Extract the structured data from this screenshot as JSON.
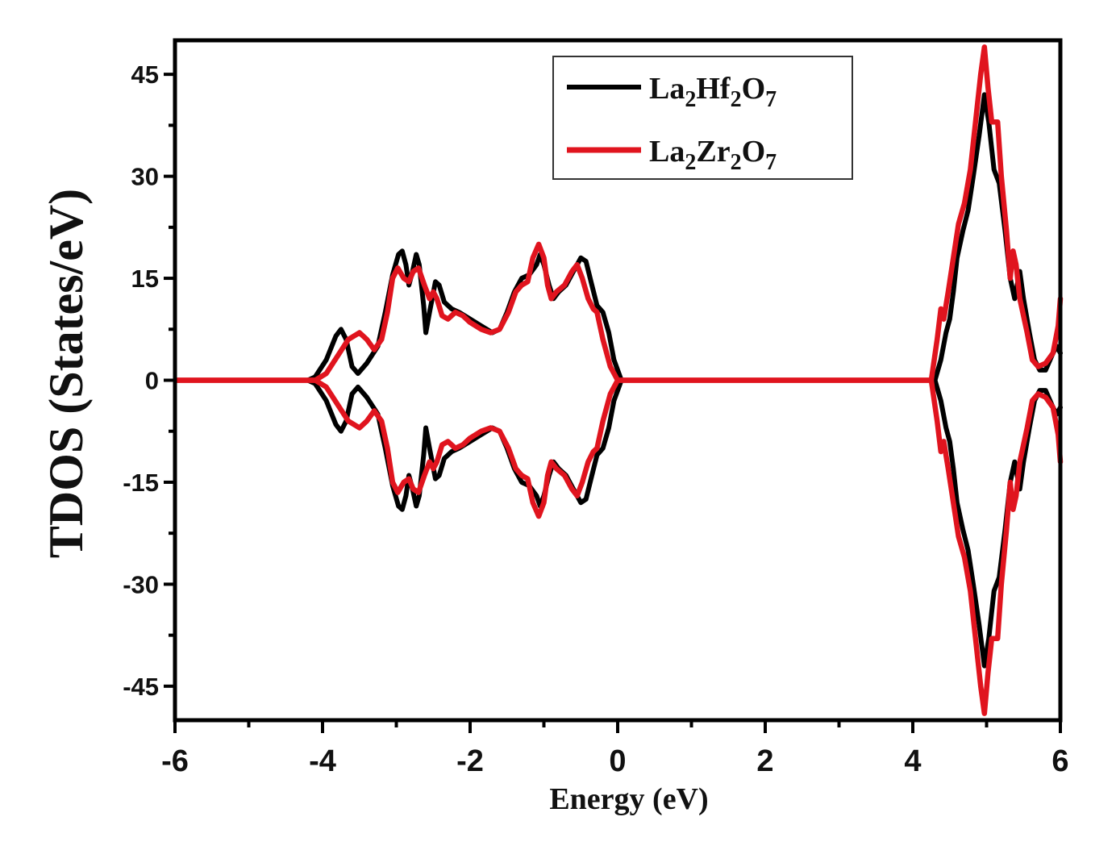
{
  "chart_data": {
    "type": "line",
    "title": "",
    "xlabel": "Energy (eV)",
    "ylabel": "TDOS (States/eV)",
    "xlim": [
      -6,
      6
    ],
    "ylim": [
      -50,
      50
    ],
    "xticks": [
      -6,
      -4,
      -2,
      0,
      2,
      4,
      6
    ],
    "xtick_labels": [
      "-6",
      "-4",
      "-2",
      "0",
      "2",
      "4",
      "6"
    ],
    "yticks": [
      45,
      30,
      15,
      0,
      -15,
      -30,
      -45
    ],
    "ytick_labels": [
      "45",
      "30",
      "15",
      "0",
      "-15",
      "-30",
      "-45"
    ],
    "grid": false,
    "legend_position": "upper right",
    "symmetric_spin_down": true,
    "series": [
      {
        "name": "La2Hf2O7",
        "legend": {
          "base": "La",
          "s1": "2",
          "mid": "Hf",
          "s2": "2",
          "end": "O",
          "s3": "7"
        },
        "color": "#000000",
        "x": [
          -6,
          -4.2,
          -4.1,
          -3.95,
          -3.82,
          -3.75,
          -3.68,
          -3.6,
          -3.52,
          -3.4,
          -3.25,
          -3.15,
          -3.05,
          -2.97,
          -2.92,
          -2.87,
          -2.83,
          -2.78,
          -2.73,
          -2.69,
          -2.63,
          -2.6,
          -2.55,
          -2.47,
          -2.42,
          -2.35,
          -2.25,
          -2.15,
          -2.0,
          -1.85,
          -1.7,
          -1.6,
          -1.5,
          -1.4,
          -1.3,
          -1.2,
          -1.1,
          -1.05,
          -1.0,
          -0.93,
          -0.87,
          -0.8,
          -0.7,
          -0.6,
          -0.5,
          -0.43,
          -0.35,
          -0.28,
          -0.2,
          -0.12,
          -0.05,
          0.05,
          4.3,
          4.38,
          4.45,
          4.5,
          4.55,
          4.6,
          4.68,
          4.75,
          4.82,
          4.9,
          4.97,
          5.03,
          5.1,
          5.17,
          5.25,
          5.32,
          5.38,
          5.45,
          5.5,
          5.58,
          5.65,
          5.72,
          5.8,
          5.9,
          5.95,
          6.0
        ],
        "y": [
          0,
          0,
          0.5,
          3,
          6.5,
          7.5,
          6,
          2,
          1,
          2.5,
          5,
          10,
          15.5,
          18.5,
          19,
          17,
          14,
          16,
          18.5,
          17,
          11,
          7,
          10,
          14.5,
          14,
          11.5,
          10.5,
          10,
          9,
          8,
          7,
          7.5,
          10,
          13,
          15,
          15.5,
          17,
          18.5,
          17,
          14,
          12,
          13,
          14,
          16,
          18,
          17.5,
          14,
          11,
          10,
          7,
          3,
          0,
          0,
          3,
          7,
          9,
          13,
          18,
          22,
          25,
          30,
          36,
          42,
          38,
          31,
          29,
          22,
          15,
          12,
          16,
          12,
          7,
          3,
          1.5,
          1.5,
          4,
          5,
          4
        ]
      },
      {
        "name": "La2Zr2O7",
        "legend": {
          "base": "La",
          "s1": "2",
          "mid": "Zr",
          "s2": "2",
          "end": "O",
          "s3": "7"
        },
        "color": "#e0141e",
        "x": [
          -6,
          -4.1,
          -3.95,
          -3.8,
          -3.65,
          -3.5,
          -3.4,
          -3.3,
          -3.2,
          -3.12,
          -3.05,
          -2.98,
          -2.9,
          -2.83,
          -2.77,
          -2.7,
          -2.62,
          -2.55,
          -2.5,
          -2.45,
          -2.38,
          -2.3,
          -2.2,
          -2.1,
          -2.0,
          -1.85,
          -1.72,
          -1.6,
          -1.48,
          -1.38,
          -1.3,
          -1.22,
          -1.15,
          -1.07,
          -1.0,
          -0.95,
          -0.9,
          -0.83,
          -0.72,
          -0.62,
          -0.55,
          -0.48,
          -0.4,
          -0.33,
          -0.28,
          -0.2,
          -0.1,
          0,
          4.25,
          4.33,
          4.38,
          4.42,
          4.48,
          4.55,
          4.62,
          4.7,
          4.78,
          4.85,
          4.92,
          4.97,
          5.02,
          5.07,
          5.15,
          5.2,
          5.27,
          5.32,
          5.36,
          5.4,
          5.45,
          5.55,
          5.62,
          5.7,
          5.8,
          5.9,
          5.97,
          6.0
        ],
        "y": [
          0,
          0,
          1,
          3.5,
          6,
          7,
          6,
          4.5,
          6,
          10,
          15,
          16.5,
          15,
          14.5,
          16,
          16.5,
          14,
          12,
          13,
          12,
          9.5,
          9,
          10,
          9.5,
          8.5,
          7.5,
          7,
          7.5,
          10,
          13,
          14,
          14.5,
          18,
          20,
          18,
          14,
          12,
          13,
          14,
          16,
          17,
          15,
          12,
          10.5,
          10,
          6,
          2,
          0,
          0,
          6,
          10.5,
          9,
          13,
          18,
          23,
          26,
          31,
          38,
          45,
          49,
          43,
          38,
          38,
          30,
          22,
          15,
          19,
          17,
          12,
          7,
          3,
          2,
          2.5,
          4,
          8,
          12
        ]
      }
    ]
  }
}
